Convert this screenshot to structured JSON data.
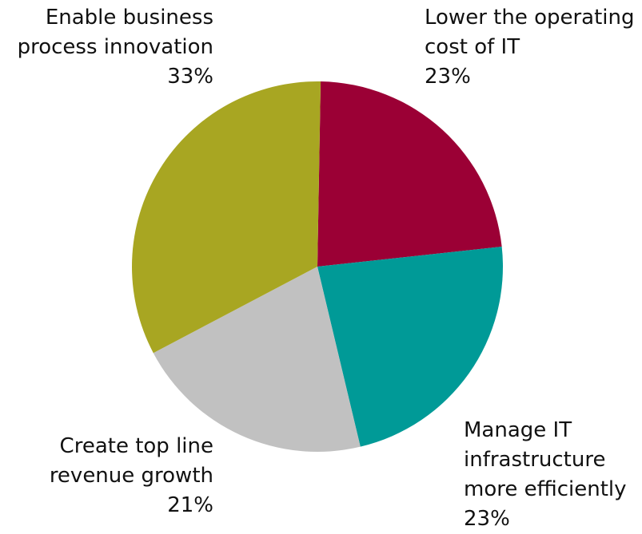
{
  "chart_data": {
    "type": "pie",
    "title": "",
    "slices": [
      {
        "label_lines": [
          "Lower the operating",
          "cost of IT"
        ],
        "value": 23,
        "value_label": "23%",
        "color": "#9B0035"
      },
      {
        "label_lines": [
          "Manage IT",
          "infrastructure",
          "more efficiently"
        ],
        "value": 23,
        "value_label": "23%",
        "color": "#009A97"
      },
      {
        "label_lines": [
          "Create top line",
          "revenue growth"
        ],
        "value": 21,
        "value_label": "21%",
        "color": "#C1C1C1"
      },
      {
        "label_lines": [
          "Enable business",
          "process innovation"
        ],
        "value": 33,
        "value_label": "33%",
        "color": "#A8A622"
      }
    ],
    "start_angle_deg": 1,
    "direction": "clockwise"
  }
}
